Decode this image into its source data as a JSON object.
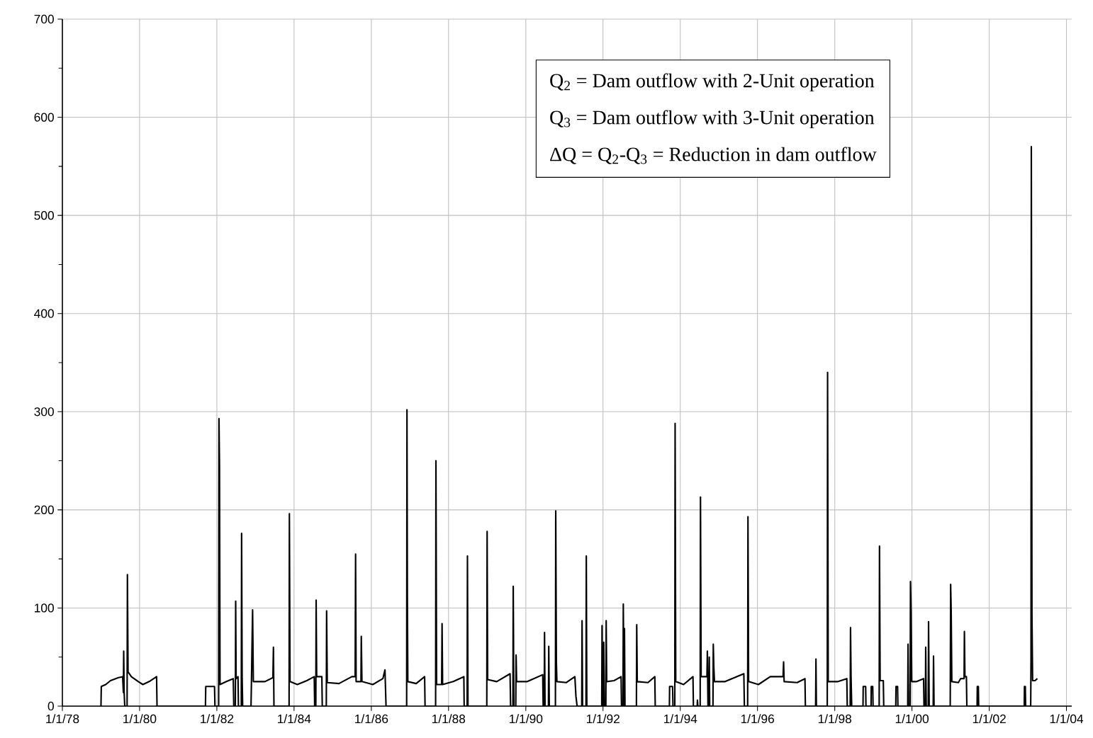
{
  "chart_data": {
    "type": "line",
    "xlim": [
      "1978-01-01",
      "2004-02-20"
    ],
    "ylim": [
      0,
      700
    ],
    "yticks": [
      0,
      100,
      200,
      300,
      400,
      500,
      600,
      700
    ],
    "xticks": [
      {
        "value": "1978-01-01",
        "label": "1/1/78"
      },
      {
        "value": "1980-01-01",
        "label": "1/1/80"
      },
      {
        "value": "1982-01-01",
        "label": "1/1/82"
      },
      {
        "value": "1984-01-01",
        "label": "1/1/84"
      },
      {
        "value": "1986-01-01",
        "label": "1/1/86"
      },
      {
        "value": "1988-01-01",
        "label": "1/1/88"
      },
      {
        "value": "1990-01-01",
        "label": "1/1/90"
      },
      {
        "value": "1992-01-01",
        "label": "1/1/92"
      },
      {
        "value": "1994-01-01",
        "label": "1/1/94"
      },
      {
        "value": "1996-01-01",
        "label": "1/1/96"
      },
      {
        "value": "1998-01-01",
        "label": "1/1/98"
      },
      {
        "value": "2000-01-01",
        "label": "1/1/00"
      },
      {
        "value": "2002-01-01",
        "label": "1/1/02"
      },
      {
        "value": "2004-01-01",
        "label": "1/1/04"
      }
    ],
    "grid": true,
    "annotations": [
      "Q$_{2}$ = Dam outflow with 2-Unit operation",
      "Q$_{3}$ = Dam outflow with 3-Unit operation",
      "ΔQ = Q$_{2}$-Q$_{3}$ = Reduction in dam outflow"
    ],
    "series": [
      {
        "color": "#000000",
        "x": [
          "1979-01-01",
          "1979-01-04",
          "1979-02-15",
          "1979-04-01",
          "1979-06-15",
          "1979-07-25",
          "1979-08-01",
          "1979-08-04",
          "1979-08-08",
          "1979-08-14",
          "1979-09-05",
          "1979-09-08",
          "1979-09-14",
          "1979-10-15",
          "1979-12-20",
          "1980-02-01",
          "1980-04-01",
          "1980-06-10",
          "1980-06-14",
          "1981-09-15",
          "1981-09-18",
          "1981-12-10",
          "1981-12-14",
          "1982-01-18",
          "1982-01-21",
          "1982-01-26",
          "1982-01-31",
          "1982-04-01",
          "1982-06-05",
          "1982-06-10",
          "1982-06-25",
          "1982-06-28",
          "1982-07-02",
          "1982-07-20",
          "1982-07-24",
          "1982-08-20",
          "1982-08-23",
          "1982-08-28",
          "1982-09-02",
          "1982-11-20",
          "1982-11-24",
          "1982-12-05",
          "1982-12-12",
          "1983-04-01",
          "1983-06-15",
          "1983-06-20",
          "1983-06-25",
          "1983-11-15",
          "1983-11-18",
          "1983-11-24",
          "1984-02-01",
          "1984-05-01",
          "1984-07-10",
          "1984-07-14",
          "1984-07-25",
          "1984-07-28",
          "1984-08-02",
          "1984-09-20",
          "1984-09-24",
          "1984-11-01",
          "1984-11-04",
          "1984-11-10",
          "1985-03-01",
          "1985-07-01",
          "1985-08-01",
          "1985-08-05",
          "1985-08-10",
          "1985-09-25",
          "1985-09-28",
          "1985-10-04",
          "1986-01-15",
          "1986-04-20",
          "1986-05-10",
          "1986-05-20",
          "1986-12-01",
          "1986-12-04",
          "1986-12-08",
          "1986-12-12",
          "1987-03-01",
          "1987-05-20",
          "1987-05-24",
          "1987-09-01",
          "1987-09-04",
          "1987-09-10",
          "1987-10-28",
          "1987-11-01",
          "1987-11-06",
          "1988-02-15",
          "1988-05-25",
          "1988-05-28",
          "1988-06-25",
          "1988-06-28",
          "1988-07-03",
          "1988-12-28",
          "1988-12-31",
          "1989-01-05",
          "1989-04-01",
          "1989-08-05",
          "1989-08-10",
          "1989-09-01",
          "1989-09-04",
          "1989-09-10",
          "1989-09-28",
          "1989-10-01",
          "1989-10-06",
          "1990-01-15",
          "1990-06-10",
          "1990-06-14",
          "1990-06-24",
          "1990-06-27",
          "1990-07-02",
          "1990-08-03",
          "1990-08-06",
          "1990-08-11",
          "1990-10-08",
          "1990-10-11",
          "1990-10-17",
          "1990-10-22",
          "1991-01-20",
          "1991-04-10",
          "1991-04-20",
          "1991-05-01",
          "1991-06-14",
          "1991-06-17",
          "1991-06-22",
          "1991-07-24",
          "1991-07-27",
          "1991-08-01",
          "1991-12-20",
          "1991-12-23",
          "1991-12-28",
          "1992-01-05",
          "1992-01-08",
          "1992-01-14",
          "1992-01-28",
          "1992-01-31",
          "1992-02-05",
          "1992-04-15",
          "1992-06-20",
          "1992-06-24",
          "1992-07-08",
          "1992-07-11",
          "1992-07-17",
          "1992-07-22",
          "1992-07-27",
          "1992-11-12",
          "1992-11-15",
          "1992-11-20",
          "1993-03-01",
          "1993-05-05",
          "1993-05-09",
          "1993-09-20",
          "1993-09-22",
          "1993-10-20",
          "1993-10-24",
          "1993-11-10",
          "1993-11-13",
          "1993-11-19",
          "1994-02-01",
          "1994-05-01",
          "1994-05-05",
          "1994-06-10",
          "1994-06-12",
          "1994-06-16",
          "1994-07-08",
          "1994-07-11",
          "1994-07-17",
          "1994-09-10",
          "1994-09-14",
          "1994-09-20",
          "1994-09-28",
          "1994-10-02",
          "1994-10-06",
          "1994-11-06",
          "1994-11-09",
          "1994-11-14",
          "1994-11-20",
          "1995-03-01",
          "1995-08-25",
          "1995-08-30",
          "1995-09-30",
          "1995-10-03",
          "1995-10-09",
          "1996-01-10",
          "1996-05-01",
          "1996-08-30",
          "1996-09-04",
          "1996-09-09",
          "1997-01-10",
          "1997-03-25",
          "1997-03-29",
          "1997-07-04",
          "1997-07-07",
          "1997-07-11",
          "1997-10-22",
          "1997-10-25",
          "1997-10-31",
          "1998-02-01",
          "1998-04-25",
          "1998-04-29",
          "1998-05-27",
          "1998-05-30",
          "1998-06-04",
          "1998-06-10",
          "1998-09-25",
          "1998-09-27",
          "1998-10-20",
          "1998-10-23",
          "1998-12-10",
          "1998-12-12",
          "1998-12-26",
          "1998-12-29",
          "1999-02-25",
          "1999-02-28",
          "1999-03-06",
          "1999-04-05",
          "1999-04-09",
          "1999-08-01",
          "1999-08-03",
          "1999-08-18",
          "1999-08-21",
          "1999-11-22",
          "1999-11-25",
          "1999-11-30",
          "1999-12-15",
          "1999-12-18",
          "1999-12-24",
          "1999-12-30",
          "2000-02-15",
          "2000-04-20",
          "2000-04-24",
          "2000-05-07",
          "2000-05-10",
          "2000-05-15",
          "2000-06-03",
          "2000-06-06",
          "2000-06-12",
          "2000-07-20",
          "2000-07-23",
          "2000-07-28",
          "2000-12-28",
          "2001-01-01",
          "2001-01-06",
          "2001-01-12",
          "2001-03-15",
          "2001-04-05",
          "2001-05-08",
          "2001-05-11",
          "2001-05-16",
          "2001-05-30",
          "2001-06-03",
          "2001-09-08",
          "2001-09-10",
          "2001-09-20",
          "2001-09-23",
          "2002-11-28",
          "2002-11-30",
          "2002-12-08",
          "2002-12-11",
          "2003-01-28",
          "2003-01-31",
          "2003-02-03",
          "2003-02-09",
          "2003-02-15",
          "2003-03-10",
          "2003-04-01"
        ],
        "values": [
          0,
          20,
          22,
          26,
          29,
          30,
          14,
          56,
          14,
          0,
          0,
          134,
          35,
          30,
          25,
          22,
          25,
          30,
          0,
          0,
          20,
          20,
          0,
          0,
          293,
          245,
          22,
          25,
          28,
          0,
          0,
          107,
          28,
          30,
          0,
          0,
          176,
          30,
          0,
          0,
          24,
          98,
          25,
          25,
          29,
          60,
          0,
          0,
          196,
          25,
          22,
          26,
          30,
          0,
          0,
          108,
          30,
          30,
          0,
          0,
          97,
          24,
          23,
          30,
          30,
          155,
          25,
          25,
          71,
          25,
          22,
          28,
          37,
          0,
          0,
          302,
          110,
          25,
          23,
          30,
          0,
          0,
          250,
          22,
          22,
          84,
          22,
          25,
          30,
          0,
          0,
          153,
          0,
          0,
          178,
          27,
          25,
          33,
          0,
          0,
          122,
          0,
          0,
          52,
          25,
          25,
          32,
          0,
          0,
          75,
          0,
          0,
          61,
          0,
          0,
          199,
          45,
          25,
          24,
          30,
          10,
          0,
          0,
          87,
          0,
          0,
          153,
          0,
          0,
          82,
          0,
          0,
          65,
          0,
          0,
          87,
          25,
          26,
          30,
          0,
          0,
          104,
          0,
          79,
          0,
          0,
          83,
          25,
          24,
          30,
          0,
          0,
          20,
          20,
          0,
          0,
          288,
          25,
          22,
          30,
          0,
          0,
          6,
          0,
          0,
          213,
          30,
          30,
          56,
          0,
          0,
          50,
          0,
          0,
          63,
          40,
          25,
          25,
          33,
          0,
          0,
          193,
          25,
          22,
          30,
          30,
          45,
          25,
          24,
          28,
          0,
          0,
          48,
          0,
          0,
          340,
          25,
          25,
          28,
          0,
          0,
          80,
          30,
          0,
          0,
          20,
          20,
          0,
          0,
          20,
          20,
          0,
          0,
          163,
          26,
          26,
          0,
          0,
          20,
          20,
          0,
          0,
          63,
          0,
          0,
          127,
          95,
          25,
          25,
          28,
          0,
          0,
          60,
          0,
          0,
          86,
          0,
          0,
          51,
          0,
          0,
          124,
          97,
          25,
          24,
          28,
          28,
          76,
          30,
          30,
          0,
          0,
          20,
          20,
          0,
          0,
          20,
          20,
          0,
          0,
          48,
          570,
          93,
          26,
          26,
          28
        ]
      }
    ]
  }
}
